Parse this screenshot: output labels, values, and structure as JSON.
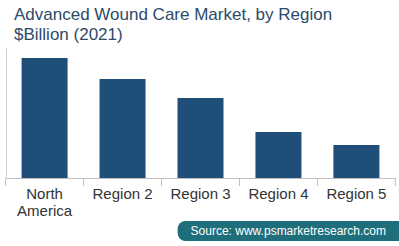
{
  "chart_data": {
    "type": "bar",
    "title": "Advanced Wound Care Market, by Region",
    "subtitle": "$Billion (2021)",
    "categories": [
      "North America",
      "Region 2",
      "Region 3",
      "Region 4",
      "Region 5"
    ],
    "values": [
      120,
      99,
      80,
      46,
      33
    ],
    "color": "#1f4e79",
    "ylim": [
      0,
      130
    ],
    "tick_labels": "x",
    "grid": false,
    "annotations": [
      "Source: www.psmarketresearch.com"
    ]
  }
}
